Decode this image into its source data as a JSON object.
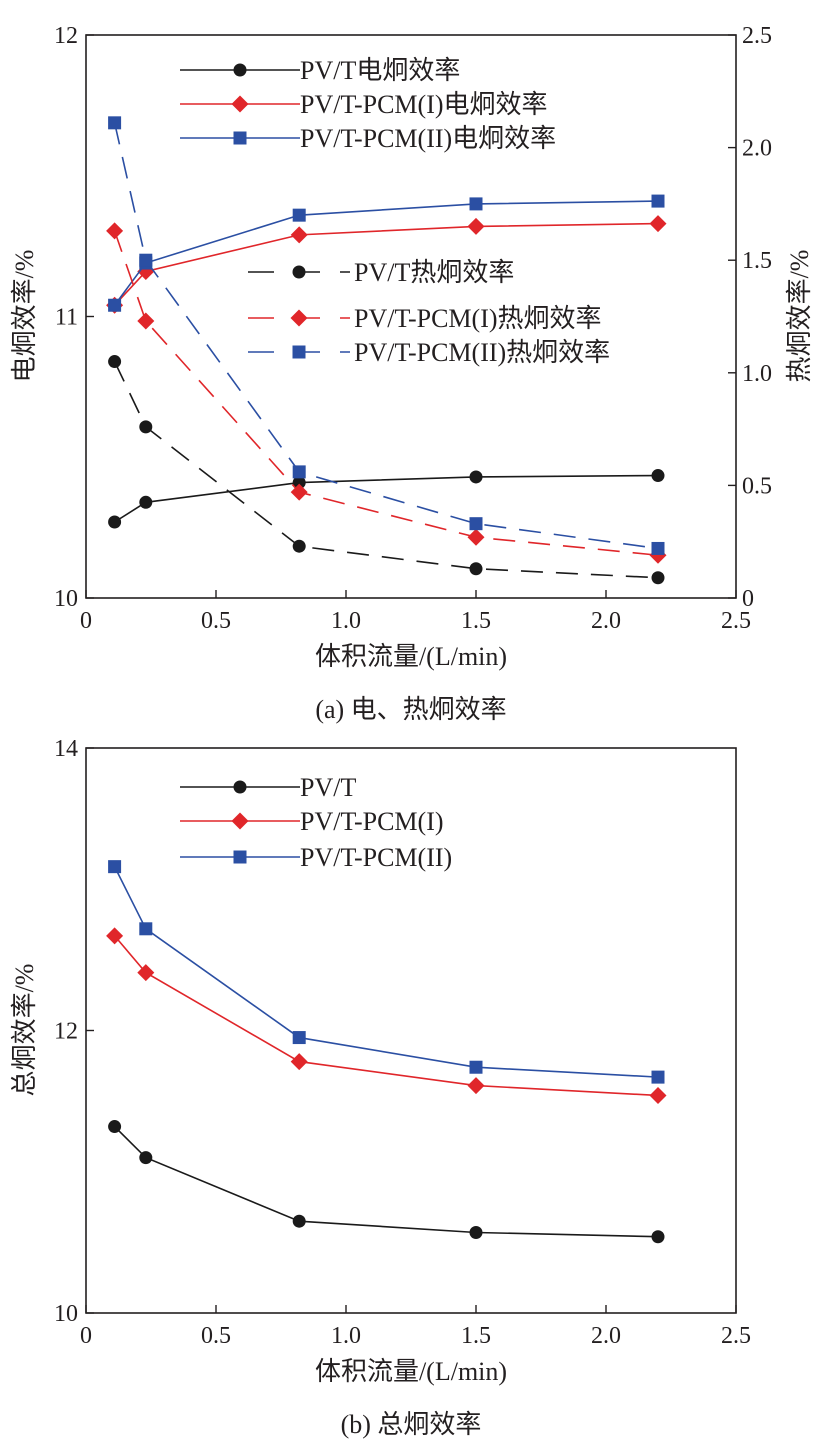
{
  "colors": {
    "black": "#1a1a1a",
    "red": "#e0262a",
    "blue": "#2b4fa3",
    "axis": "#231f20"
  },
  "chart_data": [
    {
      "type": "line",
      "caption": "(a) 电、热炯效率",
      "xlabel": "体积流量/(L/min)",
      "ylabel": "电炯效率/%",
      "y2label": "热炯效率/%",
      "xlim": [
        0,
        2.5
      ],
      "ylim": [
        10,
        12
      ],
      "y2lim": [
        0,
        2.5
      ],
      "xticks": [
        0,
        0.5,
        1.0,
        1.5,
        2.0,
        2.5
      ],
      "xtick_labels": [
        "0",
        "0.5",
        "1.0",
        "1.5",
        "2.0",
        "2.5"
      ],
      "yticks": [
        10,
        11,
        12
      ],
      "ytick_labels": [
        "10",
        "11",
        "12"
      ],
      "y2ticks": [
        0,
        0.5,
        1.0,
        1.5,
        2.0,
        2.5
      ],
      "y2tick_labels": [
        "0",
        "0.5",
        "1.0",
        "1.5",
        "2.0",
        "2.5"
      ],
      "x": [
        0.11,
        0.23,
        0.82,
        1.5,
        2.2
      ],
      "series": [
        {
          "name": "PV/T电炯效率",
          "axis": "left",
          "style": "solid",
          "marker": "circle",
          "color": "#1a1a1a",
          "values": [
            10.27,
            10.34,
            10.41,
            10.43,
            10.435
          ]
        },
        {
          "name": "PV/T-PCM(I)电炯效率",
          "axis": "left",
          "style": "solid",
          "marker": "diamond",
          "color": "#e0262a",
          "values": [
            11.04,
            11.16,
            11.29,
            11.32,
            11.33
          ]
        },
        {
          "name": "PV/T-PCM(II)电炯效率",
          "axis": "left",
          "style": "solid",
          "marker": "square",
          "color": "#2b4fa3",
          "values": [
            11.04,
            11.19,
            11.36,
            11.4,
            11.41
          ]
        },
        {
          "name": "PV/T热炯效率",
          "axis": "right",
          "style": "dashed",
          "marker": "circle",
          "color": "#1a1a1a",
          "values": [
            1.05,
            0.76,
            0.23,
            0.13,
            0.09
          ]
        },
        {
          "name": "PV/T-PCM(I)热炯效率",
          "axis": "right",
          "style": "dashed",
          "marker": "diamond",
          "color": "#e0262a",
          "values": [
            1.63,
            1.23,
            0.47,
            0.27,
            0.19
          ]
        },
        {
          "name": "PV/T-PCM(II)热炯效率",
          "axis": "right",
          "style": "dashed",
          "marker": "square",
          "color": "#2b4fa3",
          "values": [
            2.11,
            1.5,
            0.56,
            0.33,
            0.22
          ]
        }
      ]
    },
    {
      "type": "line",
      "caption": "(b) 总炯效率",
      "xlabel": "体积流量/(L/min)",
      "ylabel": "总炯效率/%",
      "xlim": [
        0,
        2.5
      ],
      "ylim": [
        10,
        14
      ],
      "xticks": [
        0,
        0.5,
        1.0,
        1.5,
        2.0,
        2.5
      ],
      "xtick_labels": [
        "0",
        "0.5",
        "1.0",
        "1.5",
        "2.0",
        "2.5"
      ],
      "yticks": [
        10,
        12,
        14
      ],
      "ytick_labels": [
        "10",
        "12",
        "14"
      ],
      "x": [
        0.11,
        0.23,
        0.82,
        1.5,
        2.2
      ],
      "series": [
        {
          "name": "PV/T",
          "axis": "left",
          "style": "solid",
          "marker": "circle",
          "color": "#1a1a1a",
          "values": [
            11.32,
            11.1,
            10.65,
            10.57,
            10.54
          ]
        },
        {
          "name": "PV/T-PCM(I)",
          "axis": "left",
          "style": "solid",
          "marker": "diamond",
          "color": "#e0262a",
          "values": [
            12.67,
            12.41,
            11.78,
            11.61,
            11.54
          ]
        },
        {
          "name": "PV/T-PCM(II)",
          "axis": "left",
          "style": "solid",
          "marker": "square",
          "color": "#2b4fa3",
          "values": [
            13.16,
            12.72,
            11.95,
            11.74,
            11.67
          ]
        }
      ]
    }
  ]
}
